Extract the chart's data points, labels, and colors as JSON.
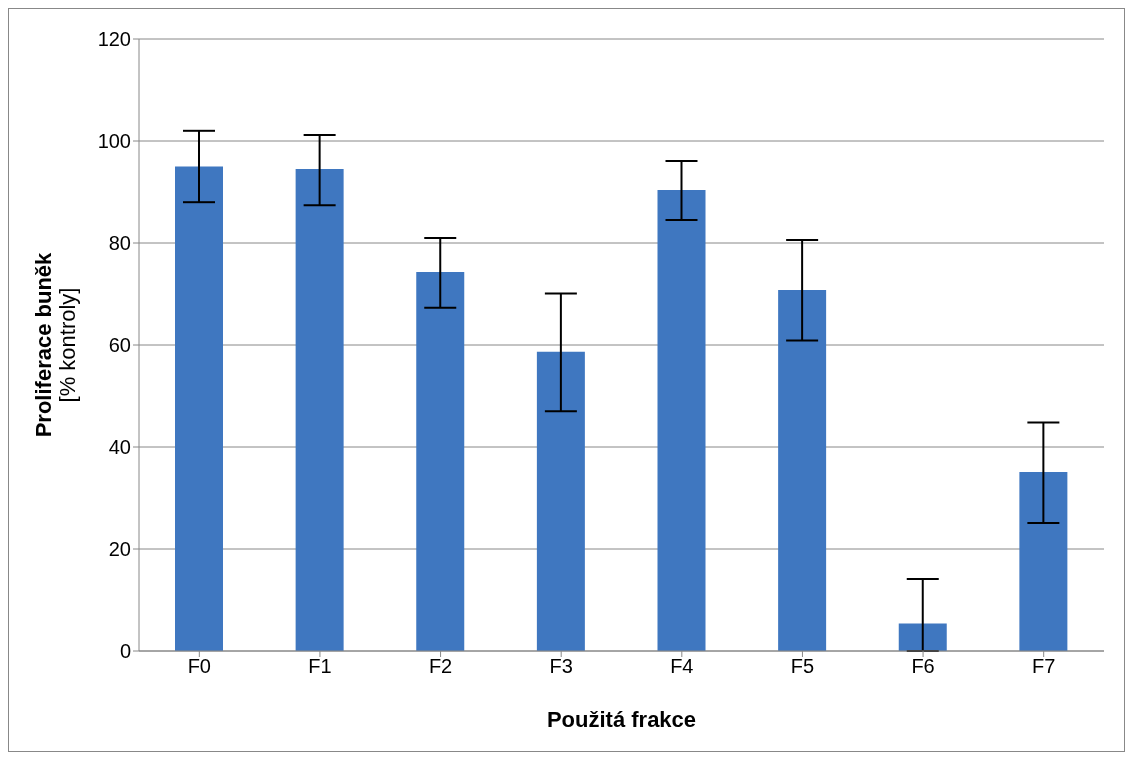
{
  "chart_data": {
    "type": "bar",
    "xlabel": "Použitá frakce",
    "ylabel": "Proliferace buněk\n[% kontroly]",
    "categories": [
      "F0",
      "F1",
      "F2",
      "F3",
      "F4",
      "F5",
      "F6",
      "F7"
    ],
    "values": [
      95,
      94.5,
      74.3,
      58.7,
      90.4,
      70.8,
      5.4,
      35.1
    ],
    "errors": [
      [
        88,
        102
      ],
      [
        87.4,
        101.2
      ],
      [
        67.3,
        81
      ],
      [
        47,
        70.1
      ],
      [
        84.5,
        96.1
      ],
      [
        60.9,
        80.6
      ],
      [
        0,
        14.1
      ],
      [
        25.1,
        44.8
      ]
    ],
    "color": "#3f77c0",
    "ylim": [
      0,
      120
    ],
    "yticks": [
      0,
      20,
      40,
      60,
      80,
      100,
      120
    ],
    "grid": "y"
  }
}
